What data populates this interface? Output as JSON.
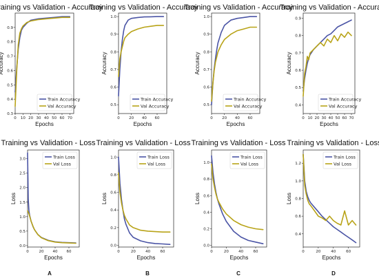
{
  "colors": {
    "train": "#4a54a5",
    "val": "#b8a317"
  },
  "chart_data": [
    {
      "type": "line",
      "title": "Training vs Validation - Accuracy",
      "xlabel": "Epochs",
      "ylabel": "Accuracy",
      "xlim": [
        0,
        75
      ],
      "ylim": [
        0.3,
        1.0
      ],
      "xticks": [
        "0",
        "10",
        "20",
        "30",
        "40",
        "50",
        "60",
        "70"
      ],
      "yticks": [
        "0.3",
        "0.4",
        "0.5",
        "0.6",
        "0.7",
        "0.8",
        "0.9"
      ],
      "legend": "bottom-right",
      "series": [
        {
          "name": "Train Accuracy",
          "x": [
            0,
            2,
            4,
            6,
            8,
            10,
            15,
            20,
            30,
            40,
            50,
            60,
            70
          ],
          "values": [
            0.45,
            0.62,
            0.75,
            0.83,
            0.88,
            0.9,
            0.93,
            0.95,
            0.96,
            0.965,
            0.97,
            0.975,
            0.975
          ]
        },
        {
          "name": "Val Accuracy",
          "x": [
            0,
            2,
            4,
            6,
            8,
            10,
            15,
            20,
            30,
            40,
            50,
            60,
            70
          ],
          "values": [
            0.35,
            0.6,
            0.78,
            0.86,
            0.89,
            0.91,
            0.935,
            0.945,
            0.955,
            0.96,
            0.965,
            0.97,
            0.97
          ]
        }
      ]
    },
    {
      "type": "line",
      "title": "Training vs Validation - Accuracy",
      "xlabel": "Epochs",
      "ylabel": "Accuracy",
      "xlim": [
        0,
        75
      ],
      "ylim": [
        0.45,
        1.02
      ],
      "xticks": [
        "0",
        "20",
        "40",
        "60"
      ],
      "yticks": [
        "0.5",
        "0.6",
        "0.7",
        "0.8",
        "0.9",
        "1.0"
      ],
      "legend": "bottom-right",
      "series": [
        {
          "name": "Train Accuracy",
          "x": [
            0,
            2,
            4,
            6,
            8,
            10,
            15,
            20,
            30,
            40,
            50,
            60,
            70
          ],
          "values": [
            0.55,
            0.7,
            0.8,
            0.87,
            0.92,
            0.95,
            0.98,
            0.99,
            0.995,
            0.998,
            0.999,
            1.0,
            1.0
          ]
        },
        {
          "name": "Val Accuracy",
          "x": [
            0,
            2,
            4,
            6,
            8,
            10,
            15,
            20,
            30,
            40,
            50,
            60,
            70
          ],
          "values": [
            0.66,
            0.76,
            0.8,
            0.83,
            0.86,
            0.88,
            0.9,
            0.915,
            0.93,
            0.94,
            0.945,
            0.95,
            0.95
          ]
        }
      ]
    },
    {
      "type": "line",
      "title": "Training vs Validation - Accuracy",
      "xlabel": "Epochs",
      "ylabel": "Accuracy",
      "xlim": [
        0,
        75
      ],
      "ylim": [
        0.45,
        1.02
      ],
      "xticks": [
        "0",
        "20",
        "40",
        "60"
      ],
      "yticks": [
        "0.5",
        "0.6",
        "0.7",
        "0.8",
        "0.9",
        "1.0"
      ],
      "legend": "bottom-right",
      "series": [
        {
          "name": "Train Accuracy",
          "x": [
            0,
            2,
            4,
            6,
            8,
            10,
            15,
            20,
            30,
            40,
            50,
            60,
            70
          ],
          "values": [
            0.5,
            0.62,
            0.7,
            0.76,
            0.81,
            0.85,
            0.91,
            0.95,
            0.98,
            0.99,
            0.995,
            1.0,
            1.0
          ]
        },
        {
          "name": "Val Accuracy",
          "x": [
            0,
            2,
            4,
            6,
            8,
            10,
            15,
            20,
            30,
            40,
            50,
            60,
            70
          ],
          "values": [
            0.52,
            0.62,
            0.69,
            0.74,
            0.77,
            0.8,
            0.84,
            0.87,
            0.9,
            0.92,
            0.93,
            0.94,
            0.94
          ]
        }
      ]
    },
    {
      "type": "line",
      "title": "Training vs Validation - Accuracy",
      "xlabel": "Epochs",
      "ylabel": "Accuracy",
      "xlim": [
        0,
        75
      ],
      "ylim": [
        0.35,
        0.93
      ],
      "xticks": [
        "0",
        "10",
        "20",
        "30",
        "40",
        "50",
        "60",
        "70"
      ],
      "yticks": [
        "0.4",
        "0.5",
        "0.6",
        "0.7",
        "0.8",
        "0.9"
      ],
      "legend": "bottom-right",
      "series": [
        {
          "name": "Train Accuracy",
          "x": [
            0,
            2,
            4,
            6,
            8,
            10,
            15,
            20,
            25,
            30,
            35,
            40,
            45,
            50,
            55,
            60,
            65,
            70
          ],
          "values": [
            0.48,
            0.55,
            0.6,
            0.64,
            0.67,
            0.69,
            0.72,
            0.74,
            0.76,
            0.78,
            0.8,
            0.81,
            0.83,
            0.85,
            0.86,
            0.87,
            0.88,
            0.89
          ]
        },
        {
          "name": "Val Accuracy",
          "x": [
            0,
            2,
            4,
            6,
            8,
            10,
            15,
            20,
            25,
            30,
            35,
            40,
            45,
            50,
            55,
            60,
            65,
            70
          ],
          "values": [
            0.45,
            0.58,
            0.62,
            0.68,
            0.66,
            0.7,
            0.72,
            0.74,
            0.76,
            0.74,
            0.78,
            0.76,
            0.8,
            0.77,
            0.81,
            0.79,
            0.82,
            0.8
          ]
        }
      ]
    },
    {
      "type": "line",
      "title": "Training vs Validation - Loss",
      "xlabel": "Epochs",
      "ylabel": "Loss",
      "xlim": [
        0,
        75
      ],
      "ylim": [
        -0.05,
        3.3
      ],
      "xticks": [
        "0",
        "20",
        "40",
        "60"
      ],
      "yticks": [
        "0.0",
        "0.5",
        "1.0",
        "1.5",
        "2.0",
        "2.5",
        "3.0"
      ],
      "legend": "top-right",
      "series": [
        {
          "name": "Train Loss",
          "x": [
            0,
            1,
            2,
            3,
            5,
            8,
            10,
            15,
            20,
            30,
            40,
            50,
            60,
            70
          ],
          "values": [
            3.2,
            1.6,
            1.2,
            1.05,
            0.85,
            0.65,
            0.55,
            0.38,
            0.28,
            0.18,
            0.13,
            0.11,
            0.1,
            0.09
          ]
        },
        {
          "name": "Val Loss",
          "x": [
            0,
            1,
            2,
            3,
            5,
            8,
            10,
            15,
            20,
            30,
            40,
            50,
            60,
            70
          ],
          "values": [
            1.2,
            1.15,
            1.1,
            1.02,
            0.85,
            0.66,
            0.55,
            0.38,
            0.27,
            0.17,
            0.12,
            0.1,
            0.09,
            0.08
          ]
        }
      ]
    },
    {
      "type": "line",
      "title": "Training vs Validation - Loss",
      "xlabel": "Epochs",
      "ylabel": "Loss",
      "xlim": [
        0,
        75
      ],
      "ylim": [
        -0.02,
        1.08
      ],
      "xticks": [
        "0",
        "20",
        "40",
        "60"
      ],
      "yticks": [
        "0.0",
        "0.2",
        "0.4",
        "0.6",
        "0.8",
        "1.0"
      ],
      "legend": "top-right",
      "series": [
        {
          "name": "Train Loss",
          "x": [
            0,
            2,
            4,
            6,
            8,
            10,
            15,
            20,
            30,
            40,
            50,
            60,
            70
          ],
          "values": [
            1.0,
            0.7,
            0.52,
            0.4,
            0.3,
            0.24,
            0.14,
            0.09,
            0.05,
            0.03,
            0.02,
            0.015,
            0.01
          ]
        },
        {
          "name": "Val Loss",
          "x": [
            0,
            2,
            4,
            6,
            8,
            10,
            15,
            20,
            30,
            40,
            50,
            60,
            70
          ],
          "values": [
            0.82,
            0.6,
            0.48,
            0.4,
            0.34,
            0.3,
            0.23,
            0.2,
            0.17,
            0.16,
            0.155,
            0.15,
            0.15
          ]
        }
      ]
    },
    {
      "type": "line",
      "title": "Training vs Validation - Loss",
      "xlabel": "Epochs",
      "ylabel": "Loss",
      "xlim": [
        0,
        75
      ],
      "ylim": [
        -0.02,
        1.15
      ],
      "xticks": [
        "0",
        "20",
        "40",
        "60"
      ],
      "yticks": [
        "0.0",
        "0.2",
        "0.4",
        "0.6",
        "0.8",
        "1.0"
      ],
      "legend": "top-right",
      "series": [
        {
          "name": "Train Loss",
          "x": [
            0,
            2,
            4,
            6,
            8,
            10,
            15,
            20,
            30,
            40,
            50,
            60,
            70
          ],
          "values": [
            1.08,
            0.88,
            0.74,
            0.64,
            0.56,
            0.5,
            0.38,
            0.29,
            0.17,
            0.1,
            0.06,
            0.04,
            0.02
          ]
        },
        {
          "name": "Val Loss",
          "x": [
            0,
            2,
            4,
            6,
            8,
            10,
            15,
            20,
            30,
            40,
            50,
            60,
            70
          ],
          "values": [
            0.98,
            0.8,
            0.7,
            0.62,
            0.56,
            0.52,
            0.44,
            0.38,
            0.3,
            0.25,
            0.22,
            0.2,
            0.19
          ]
        }
      ]
    },
    {
      "type": "line",
      "title": "Training vs Validation - Loss",
      "xlabel": "Epochs",
      "ylabel": "Loss",
      "xlim": [
        0,
        75
      ],
      "ylim": [
        0.25,
        1.35
      ],
      "xticks": [
        "0",
        "20",
        "40",
        "60"
      ],
      "yticks": [
        "0.4",
        "0.6",
        "0.8",
        "1.0",
        "1.2"
      ],
      "legend": "top-right",
      "series": [
        {
          "name": "Train Loss",
          "x": [
            0,
            2,
            4,
            6,
            8,
            10,
            15,
            20,
            25,
            30,
            35,
            40,
            45,
            50,
            55,
            60,
            65,
            70
          ],
          "values": [
            1.3,
            1.0,
            0.88,
            0.82,
            0.78,
            0.75,
            0.7,
            0.65,
            0.6,
            0.56,
            0.52,
            0.48,
            0.45,
            0.42,
            0.39,
            0.36,
            0.33,
            0.3
          ]
        },
        {
          "name": "Val Loss",
          "x": [
            0,
            2,
            4,
            6,
            8,
            10,
            15,
            20,
            25,
            30,
            35,
            40,
            45,
            50,
            55,
            60,
            65,
            70
          ],
          "values": [
            1.3,
            0.95,
            0.85,
            0.78,
            0.74,
            0.72,
            0.66,
            0.6,
            0.58,
            0.55,
            0.6,
            0.55,
            0.52,
            0.5,
            0.66,
            0.5,
            0.55,
            0.5
          ]
        }
      ]
    }
  ],
  "panel_letters": [
    "A",
    "B",
    "C",
    "D"
  ]
}
